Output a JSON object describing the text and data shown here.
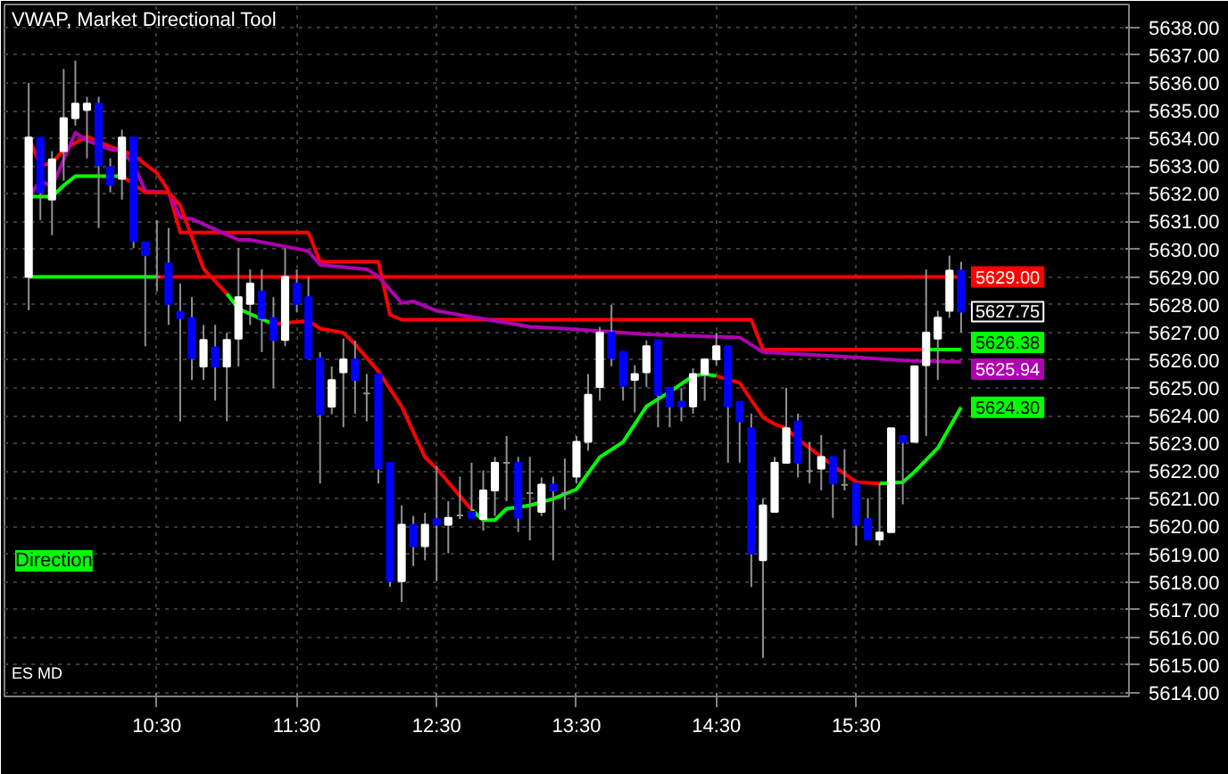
{
  "chart_data": {
    "type": "candlestick",
    "title": "VWAP, Market Directional Tool",
    "annotations": [
      "Direction",
      "ES MD",
      {
        "text": "5627.75",
        "x": 16.25,
        "y": 5627.75
      }
    ],
    "x": [
      9.5833,
      9.6667,
      9.75,
      9.8333,
      9.9167,
      10,
      10.0833,
      10.1667,
      10.25,
      10.3333,
      10.4167,
      10.5,
      10.5833,
      10.6667,
      10.75,
      10.8333,
      10.9167,
      11,
      11.0833,
      11.1667,
      11.25,
      11.3333,
      11.4167,
      11.5,
      11.5833,
      11.6667,
      11.75,
      11.8333,
      11.9167,
      12,
      12.0833,
      12.1667,
      12.25,
      12.3333,
      12.4167,
      12.5,
      12.5833,
      12.6667,
      12.75,
      12.8333,
      12.9167,
      13,
      13.0833,
      13.1667,
      13.25,
      13.3333,
      13.4167,
      13.5,
      13.5833,
      13.6667,
      13.75,
      13.8333,
      13.9167,
      14,
      14.0833,
      14.1667,
      14.25,
      14.3333,
      14.4167,
      14.5,
      14.5833,
      14.6667,
      14.75,
      14.8333,
      14.9167,
      15,
      15.0833,
      15.1667,
      15.25,
      15.3333,
      15.4167,
      15.5,
      15.5833,
      15.6667,
      15.75,
      15.8333,
      15.9167,
      16,
      16.0833,
      16.1667,
      16.25
    ],
    "ohlc": [
      [
        5629.0,
        5636.0,
        5627.8,
        5634.03
      ],
      [
        5634.03,
        5634.03,
        5631.05,
        5632.05
      ],
      [
        5631.79,
        5633.54,
        5630.51,
        5633.24
      ],
      [
        5633.54,
        5636.5,
        5632.47,
        5634.73
      ],
      [
        5634.73,
        5636.8,
        5634.46,
        5635.25
      ],
      [
        5635.03,
        5635.5,
        5633.28,
        5635.25
      ],
      [
        5635.25,
        5635.5,
        5630.77,
        5633.03
      ],
      [
        5632.96,
        5633.28,
        5632.05,
        5632.32
      ],
      [
        5632.54,
        5634.31,
        5631.79,
        5634.03
      ],
      [
        5634.03,
        5634.03,
        5630.04,
        5630.3
      ],
      [
        5630.25,
        5630.25,
        5626.5,
        5629.78
      ],
      [
        5629.0,
        5631.05,
        5628.48,
        5629.0
      ],
      [
        5629.49,
        5630.77,
        5627.27,
        5628.03
      ],
      [
        5627.74,
        5628.76,
        5623.79,
        5627.52
      ],
      [
        5627.52,
        5628.27,
        5625.28,
        5626.07
      ],
      [
        5625.77,
        5627.27,
        5625.28,
        5626.73
      ],
      [
        5626.46,
        5627.27,
        5624.54,
        5625.77
      ],
      [
        5625.77,
        5626.99,
        5623.79,
        5626.73
      ],
      [
        5626.78,
        5630.04,
        5625.77,
        5628.27
      ],
      [
        5628.03,
        5629.27,
        5627.27,
        5628.76
      ],
      [
        5628.48,
        5629.27,
        5626.29,
        5627.52
      ],
      [
        5627.52,
        5628.27,
        5625.0,
        5626.73
      ],
      [
        5626.73,
        5630.04,
        5626.5,
        5629.0
      ],
      [
        5628.76,
        5629.27,
        5627.74,
        5628.03
      ],
      [
        5628.27,
        5629.0,
        5626.07,
        5626.07
      ],
      [
        5626.07,
        5626.29,
        5621.55,
        5624.05
      ],
      [
        5624.32,
        5625.77,
        5624.05,
        5625.28
      ],
      [
        5625.56,
        5626.78,
        5623.58,
        5626.03
      ],
      [
        5626.03,
        5626.71,
        5624.07,
        5625.29
      ],
      [
        5624.8,
        5625.5,
        5623.79,
        5624.8
      ],
      [
        5625.5,
        5625.5,
        5621.55,
        5622.09
      ],
      [
        5622.3,
        5622.3,
        5617.82,
        5618.03
      ],
      [
        5618.03,
        5620.76,
        5617.28,
        5620.06
      ],
      [
        5620.06,
        5620.38,
        5618.57,
        5619.29
      ],
      [
        5619.29,
        5620.49,
        5618.78,
        5620.06
      ],
      [
        5620.27,
        5622.19,
        5618.03,
        5620.06
      ],
      [
        5620.06,
        5620.91,
        5619.03,
        5620.31
      ],
      [
        5620.4,
        5621.8,
        5620.27,
        5620.4
      ],
      [
        5620.53,
        5622.3,
        5620.31,
        5620.31
      ],
      [
        5620.27,
        5622.02,
        5619.85,
        5621.3
      ],
      [
        5621.3,
        5622.51,
        5620.38,
        5622.3
      ],
      [
        5622.3,
        5623.26,
        5620.91,
        5622.3
      ],
      [
        5622.3,
        5622.51,
        5619.8,
        5620.31
      ],
      [
        5621.2,
        5622.51,
        5619.5,
        5621.2
      ],
      [
        5620.53,
        5621.77,
        5620.38,
        5621.51
      ],
      [
        5621.51,
        5621.8,
        5618.78,
        5621.3
      ],
      [
        5621.2,
        5622.45,
        5620.6,
        5621.2
      ],
      [
        5621.8,
        5623.26,
        5621.55,
        5623.05
      ],
      [
        5623.05,
        5625.5,
        5622.73,
        5624.75
      ],
      [
        5625.03,
        5627.2,
        5624.54,
        5626.99
      ],
      [
        5626.99,
        5628.0,
        5625.78,
        5626.08
      ],
      [
        5626.29,
        5626.29,
        5624.54,
        5625.07
      ],
      [
        5625.29,
        5625.82,
        5624.11,
        5625.5
      ],
      [
        5625.56,
        5626.71,
        5625.03,
        5626.5
      ],
      [
        5626.71,
        5626.71,
        5623.58,
        5624.75
      ],
      [
        5625.0,
        5625.0,
        5623.58,
        5624.33
      ],
      [
        5624.5,
        5625.0,
        5623.79,
        5624.33
      ],
      [
        5624.33,
        5625.71,
        5624.07,
        5625.5
      ],
      [
        5625.5,
        5626.03,
        5624.54,
        5626.03
      ],
      [
        5626.03,
        5626.99,
        5625.82,
        5626.5
      ],
      [
        5626.5,
        5626.5,
        5622.3,
        5624.33
      ],
      [
        5624.5,
        5624.5,
        5622.3,
        5623.79
      ],
      [
        5623.54,
        5624.07,
        5617.82,
        5619.03
      ],
      [
        5618.78,
        5621.02,
        5615.26,
        5620.76
      ],
      [
        5620.53,
        5622.51,
        5620.49,
        5622.3
      ],
      [
        5622.3,
        5625.0,
        5622.3,
        5623.54
      ],
      [
        5623.79,
        5624.07,
        5621.77,
        5622.3
      ],
      [
        5622.0,
        5623.05,
        5621.55,
        5622.0
      ],
      [
        5622.09,
        5623.3,
        5621.3,
        5622.51
      ],
      [
        5622.51,
        5622.51,
        5620.31,
        5621.55
      ],
      [
        5621.5,
        5622.79,
        5621.3,
        5621.5
      ],
      [
        5621.55,
        5621.55,
        5619.31,
        5620.06
      ],
      [
        5620.27,
        5621.02,
        5619.53,
        5619.53
      ],
      [
        5619.53,
        5621.55,
        5619.31,
        5619.78
      ],
      [
        5619.8,
        5623.54,
        5619.8,
        5623.54
      ],
      [
        5623.26,
        5623.26,
        5620.8,
        5623.05
      ],
      [
        5623.05,
        5625.78,
        5623.05,
        5625.78
      ],
      [
        5625.82,
        5629.27,
        5623.26,
        5626.99
      ],
      [
        5626.78,
        5627.78,
        5625.29,
        5627.53
      ],
      [
        5627.78,
        5629.77,
        5627.53,
        5629.23
      ],
      [
        5629.23,
        5629.55,
        5627.0,
        5627.75
      ]
    ],
    "series": [
      {
        "type": "line",
        "color": "#00ff00",
        "x": [
          9.5833,
          10.5
        ],
        "values": [
          5629,
          5629
        ]
      },
      {
        "type": "line",
        "color": "#ff0000",
        "x": [
          10.5,
          16.25
        ],
        "values": [
          5629,
          5629
        ],
        "value_labels": [
          null,
          "5629.00"
        ]
      },
      {
        "type": "line",
        "color": "#ff0000",
        "x": [
          9.5833,
          9.6667,
          9.75,
          9.8333,
          10,
          10.1667,
          10.3333,
          10.4167,
          10.5,
          10.5833,
          10.6667,
          11.5833,
          11.6667,
          12.0833,
          12.1667,
          12.25,
          14.75,
          14.8333,
          16.25
        ],
        "values": [
          5634.03,
          5633.03,
          5633.1,
          5633.6,
          5634.07,
          5633.7,
          5633.4,
          5633.07,
          5632.75,
          5632.1,
          5630.6,
          5630.6,
          5629.55,
          5629.55,
          5627.63,
          5627.46,
          5627.46,
          5626.38,
          5626.38
        ]
      },
      {
        "type": "line",
        "color": "#00ff00",
        "x": [
          16.0,
          16.25
        ],
        "values": [
          5626.38,
          5626.38
        ],
        "value_labels": [
          null,
          "5626.38"
        ]
      },
      {
        "type": "line",
        "color": "#b000b0",
        "x": [
          9.5833,
          9.6667,
          9.75,
          9.9167,
          10,
          10.1667,
          10.25,
          10.3333,
          10.4167,
          10.5833,
          10.6667,
          10.75,
          11.0833,
          11.1667,
          11.5,
          11.5833,
          11.6667,
          12.0,
          12.0833,
          12.25,
          12.3333,
          12.5,
          12.6667,
          13.0,
          13.1667,
          13.4167,
          14.0,
          14.6667,
          14.8333,
          15.5,
          15.9167,
          16.25
        ],
        "values": [
          5631.9,
          5632.47,
          5632.26,
          5634.2,
          5633.92,
          5633.6,
          5633.54,
          5633.07,
          5632.1,
          5632.05,
          5631.15,
          5631.09,
          5630.34,
          5630.34,
          5630.02,
          5629.93,
          5629.44,
          5629.28,
          5629.02,
          5628.06,
          5628.12,
          5627.78,
          5627.63,
          5627.35,
          5627.2,
          5627.14,
          5626.93,
          5626.82,
          5626.29,
          5626.1,
          5625.97,
          5625.94
        ],
        "value_labels": [
          null,
          null,
          null,
          null,
          null,
          null,
          null,
          null,
          null,
          null,
          null,
          null,
          null,
          null,
          null,
          null,
          null,
          null,
          null,
          null,
          null,
          null,
          null,
          null,
          null,
          null,
          null,
          null,
          null,
          null,
          null,
          "5625.94"
        ]
      },
      {
        "type": "line",
        "color": "#00ff00",
        "x": [
          9.5833,
          9.75,
          9.8333,
          9.9167,
          10.25,
          10.4167,
          11.0,
          11.0833,
          11.3333,
          11.5833,
          12.75,
          12.8333,
          12.9167,
          13.0,
          13.0833,
          13.1667,
          13.3333,
          13.5,
          13.6667,
          13.8333,
          14.0,
          14.1667,
          14.3333,
          14.4167,
          14.5,
          14.6667,
          15.6667,
          15.8333,
          15.9167,
          16.0833,
          16.25
        ],
        "values": [
          5631.9,
          5631.9,
          5632.3,
          5632.64,
          5632.64,
          null,
          5628.4,
          5627.85,
          5627.3,
          null,
          5620.6,
          5620.23,
          5620.23,
          5620.64,
          5620.7,
          5620.76,
          5621.0,
          5621.34,
          5622.5,
          5623.05,
          5624.33,
          5624.86,
          5625.43,
          5625.5,
          5625.43,
          null,
          5621.55,
          5621.6,
          5621.97,
          5622.83,
          5624.3
        ],
        "value_labels": [
          null,
          null,
          null,
          null,
          null,
          null,
          null,
          null,
          null,
          null,
          null,
          null,
          null,
          null,
          null,
          null,
          null,
          null,
          null,
          null,
          null,
          null,
          null,
          null,
          null,
          null,
          null,
          null,
          null,
          null,
          "5624.30"
        ]
      },
      {
        "type": "line",
        "color": "#ff0000",
        "x": [
          10.25,
          10.4167,
          10.5833,
          10.6667,
          10.8333,
          11.0,
          11.0833,
          11.3333,
          11.5833,
          11.6667,
          11.8333,
          11.9167,
          12.0833,
          12.25,
          12.4167,
          12.5,
          12.75,
          12.8333,
          13.0,
          13.0833,
          13.1667,
          13.3333,
          14.5,
          14.6667,
          14.8333,
          14.9167,
          15.0,
          15.0833,
          15.3333,
          15.5,
          15.6667
        ],
        "values": [
          5632.64,
          5632.05,
          5632.05,
          5631.58,
          5629.3,
          5628.4,
          null,
          5627.3,
          5627.42,
          5627.14,
          5626.99,
          5626.57,
          5625.6,
          5624.33,
          5622.5,
          5622.09,
          5620.6,
          null,
          null,
          null,
          null,
          null,
          5625.43,
          5625.18,
          5623.94,
          5623.69,
          5623.54,
          5623.15,
          5622.2,
          5621.6,
          5621.55
        ]
      }
    ],
    "xlim": [
      9.41,
      17.45
    ],
    "xticks": [
      {
        "value": 10.5,
        "label": "10:30"
      },
      {
        "value": 11.5,
        "label": "11:30"
      },
      {
        "value": 12.5,
        "label": "12:30"
      },
      {
        "value": 13.5,
        "label": "13:30"
      },
      {
        "value": 14.5,
        "label": "14:30"
      },
      {
        "value": 15.5,
        "label": "15:30"
      }
    ],
    "ylim": [
      5613.87,
      5638.83
    ],
    "yticks": [
      {
        "value": 5614,
        "label": "5614.00"
      },
      {
        "value": 5615,
        "label": "5615.00"
      },
      {
        "value": 5616,
        "label": "5616.00"
      },
      {
        "value": 5617,
        "label": "5617.00"
      },
      {
        "value": 5618,
        "label": "5618.00"
      },
      {
        "value": 5619,
        "label": "5619.00"
      },
      {
        "value": 5620,
        "label": "5620.00"
      },
      {
        "value": 5621,
        "label": "5621.00"
      },
      {
        "value": 5622,
        "label": "5622.00"
      },
      {
        "value": 5623,
        "label": "5623.00"
      },
      {
        "value": 5624,
        "label": "5624.00"
      },
      {
        "value": 5625,
        "label": "5625.00"
      },
      {
        "value": 5626,
        "label": "5626.00"
      },
      {
        "value": 5627,
        "label": "5627.00"
      },
      {
        "value": 5628,
        "label": "5628.00"
      },
      {
        "value": 5629,
        "label": "5629.00"
      },
      {
        "value": 5630,
        "label": "5630.00"
      },
      {
        "value": 5631,
        "label": "5631.00"
      },
      {
        "value": 5632,
        "label": "5632.00"
      },
      {
        "value": 5633,
        "label": "5633.00"
      },
      {
        "value": 5634,
        "label": "5634.00"
      },
      {
        "value": 5635,
        "label": "5635.00"
      },
      {
        "value": 5636,
        "label": "5636.00"
      },
      {
        "value": 5637,
        "label": "5637.00"
      },
      {
        "value": 5638,
        "label": "5638.00"
      }
    ],
    "grid": true
  }
}
